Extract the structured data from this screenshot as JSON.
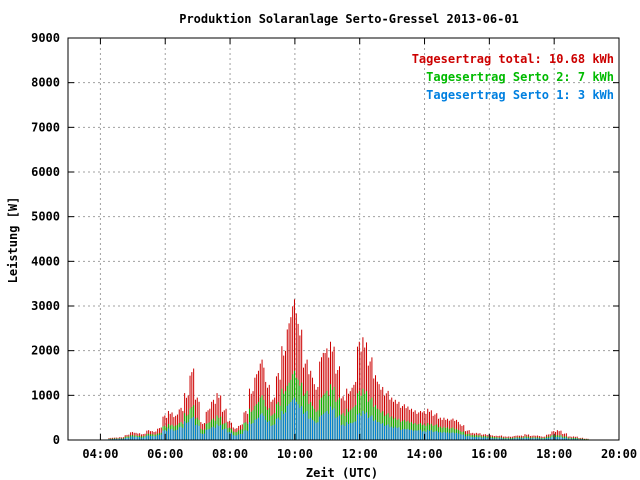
{
  "chart_data": {
    "type": "bar",
    "stacked": true,
    "title": "Produktion Solaranlage Serto-Gressel 2013-06-01",
    "xlabel": "Zeit (UTC)",
    "ylabel": "Leistung [W]",
    "xlim": [
      "03:00",
      "20:00"
    ],
    "ylim": [
      0,
      9000
    ],
    "grid": true,
    "legend_position": "top-right",
    "y_ticks": [
      "0",
      "1000",
      "2000",
      "3000",
      "4000",
      "5000",
      "6000",
      "7000",
      "8000",
      "9000"
    ],
    "x_ticks": [
      "04:00",
      "06:00",
      "08:00",
      "10:00",
      "12:00",
      "14:00",
      "16:00",
      "18:00",
      "20:00"
    ],
    "legend": [
      {
        "label": "Tagesertrag total: 10.68 kWh",
        "color": "#cc0000"
      },
      {
        "label": "Tagesertrag Serto 2: 7 kWh",
        "color": "#00bb00"
      },
      {
        "label": "Tagesertrag Serto 1: 3 kWh",
        "color": "#0080e0"
      }
    ],
    "x": [
      "04:20",
      "04:30",
      "04:40",
      "04:50",
      "05:00",
      "05:10",
      "05:20",
      "05:30",
      "05:40",
      "05:50",
      "06:00",
      "06:10",
      "06:20",
      "06:30",
      "06:40",
      "06:50",
      "07:00",
      "07:10",
      "07:20",
      "07:30",
      "07:40",
      "07:50",
      "08:00",
      "08:10",
      "08:20",
      "08:30",
      "08:40",
      "08:50",
      "09:00",
      "09:10",
      "09:20",
      "09:30",
      "09:40",
      "09:50",
      "10:00",
      "10:10",
      "10:20",
      "10:30",
      "10:40",
      "10:50",
      "11:00",
      "11:10",
      "11:20",
      "11:30",
      "11:40",
      "11:50",
      "12:00",
      "12:10",
      "12:20",
      "12:30",
      "12:40",
      "12:50",
      "13:00",
      "13:10",
      "13:20",
      "13:30",
      "13:40",
      "13:50",
      "14:00",
      "14:10",
      "14:20",
      "14:30",
      "14:40",
      "14:50",
      "15:00",
      "15:10",
      "15:20",
      "15:30",
      "15:40",
      "15:50",
      "16:00",
      "16:10",
      "16:20",
      "16:30",
      "16:40",
      "16:50",
      "17:00",
      "17:10",
      "17:20",
      "17:30",
      "17:40",
      "17:50",
      "18:00",
      "18:10",
      "18:20",
      "18:30",
      "18:40",
      "18:50",
      "19:00"
    ],
    "series": [
      {
        "name": "Tagesertrag Serto 1: 3 kWh",
        "color": "#0080e0",
        "values": [
          20,
          25,
          30,
          50,
          80,
          70,
          60,
          100,
          90,
          120,
          220,
          260,
          230,
          300,
          420,
          520,
          350,
          150,
          250,
          300,
          350,
          260,
          180,
          110,
          140,
          220,
          400,
          500,
          600,
          450,
          350,
          500,
          650,
          850,
          950,
          800,
          650,
          500,
          420,
          580,
          650,
          750,
          550,
          350,
          400,
          420,
          600,
          650,
          550,
          450,
          400,
          350,
          300,
          300,
          250,
          250,
          230,
          230,
          200,
          230,
          200,
          180,
          180,
          170,
          160,
          130,
          90,
          70,
          70,
          60,
          50,
          40,
          40,
          30,
          30,
          40,
          40,
          50,
          40,
          40,
          30,
          50,
          70,
          70,
          50,
          30,
          30,
          20,
          10
        ]
      },
      {
        "name": "Tagesertrag Serto 2: 7 kWh",
        "color": "#00bb00",
        "values": [
          30,
          35,
          40,
          80,
          110,
          100,
          90,
          140,
          130,
          160,
          320,
          360,
          340,
          400,
          600,
          780,
          500,
          250,
          400,
          480,
          550,
          390,
          280,
          190,
          240,
          400,
          700,
          850,
          1000,
          750,
          600,
          850,
          1150,
          1350,
          1550,
          1350,
          1100,
          850,
          700,
          1000,
          1100,
          1250,
          950,
          600,
          700,
          780,
          1100,
          1150,
          950,
          780,
          680,
          600,
          530,
          500,
          450,
          430,
          400,
          380,
          350,
          380,
          350,
          300,
          300,
          280,
          250,
          200,
          140,
          110,
          110,
          90,
          80,
          70,
          60,
          50,
          50,
          60,
          60,
          80,
          60,
          60,
          50,
          80,
          110,
          110,
          80,
          50,
          50,
          30,
          20
        ]
      },
      {
        "name": "Tagesertrag total: 10.68 kWh",
        "color": "#cc0000",
        "values": [
          50,
          55,
          65,
          120,
          180,
          160,
          140,
          220,
          200,
          280,
          550,
          650,
          570,
          720,
          1050,
          1600,
          950,
          400,
          700,
          900,
          1050,
          700,
          430,
          280,
          350,
          650,
          1150,
          1550,
          1800,
          1300,
          950,
          1500,
          2100,
          2750,
          3150,
          2600,
          1800,
          1550,
          1250,
          1950,
          2050,
          2200,
          1650,
          980,
          1150,
          1300,
          2200,
          2300,
          1850,
          1450,
          1250,
          1100,
          950,
          900,
          800,
          750,
          700,
          650,
          650,
          700,
          600,
          500,
          500,
          480,
          450,
          350,
          220,
          160,
          160,
          130,
          120,
          100,
          100,
          80,
          80,
          100,
          100,
          130,
          100,
          100,
          80,
          130,
          200,
          220,
          150,
          80,
          80,
          50,
          30
        ]
      }
    ]
  }
}
